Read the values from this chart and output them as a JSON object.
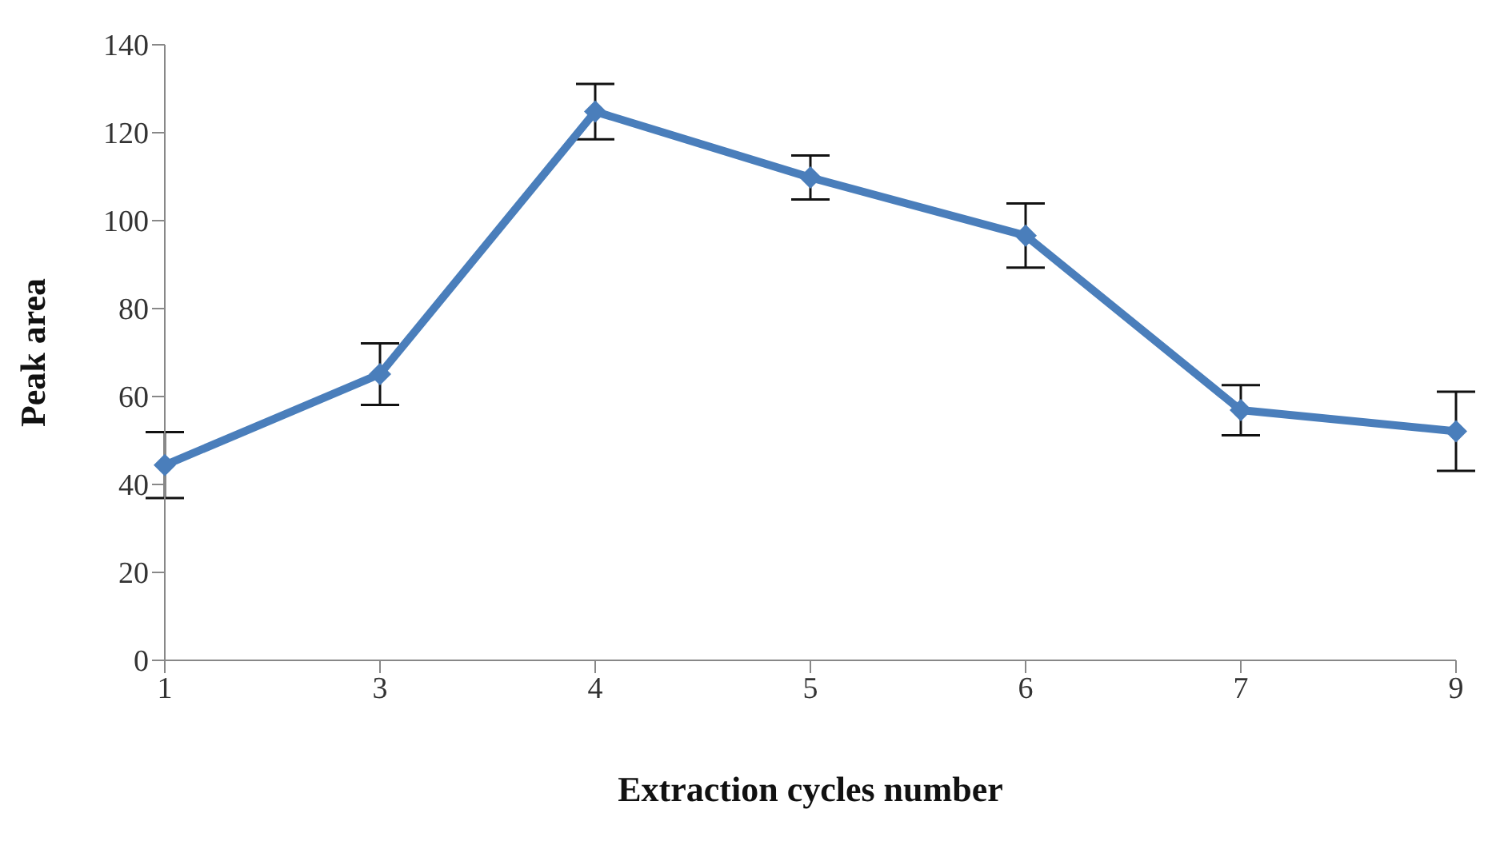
{
  "chart_data": {
    "type": "line",
    "xlabel": "Extraction cycles number",
    "ylabel": "Peak area",
    "categories": [
      "1",
      "3",
      "4",
      "5",
      "6",
      "7",
      "9"
    ],
    "series": [
      {
        "color": "#4a7ebb",
        "values": [
          44.4,
          65.1,
          124.8,
          109.8,
          96.6,
          56.9,
          52.1
        ],
        "errors": [
          7.5,
          7,
          6.3,
          5,
          7.3,
          5.7,
          9
        ]
      }
    ],
    "ylim": [
      0,
      140
    ],
    "yticks": [
      0,
      20,
      40,
      60,
      80,
      100,
      120,
      140
    ],
    "grid": false,
    "marker": "diamond",
    "line_style": "solid"
  }
}
